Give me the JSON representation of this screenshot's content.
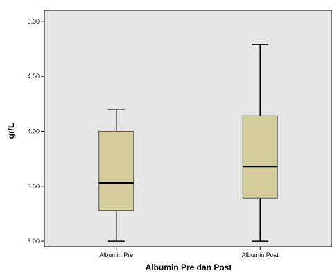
{
  "chart_data": {
    "type": "boxplot",
    "title": "",
    "xlabel": "Albumin Pre dan Post",
    "ylabel": "gr/L",
    "ylim": [
      2.95,
      5.1
    ],
    "y_ticks": [
      "3.00",
      "3.50",
      "4.00",
      "4.50",
      "5.00"
    ],
    "grid": false,
    "categories": [
      "Albumin Pre",
      "Albumin Post"
    ],
    "boxes": [
      {
        "category": "Albumin Pre",
        "min": 3.0,
        "q1": 3.28,
        "median": 3.53,
        "q3": 4.0,
        "max": 4.2
      },
      {
        "category": "Albumin Post",
        "min": 3.0,
        "q1": 3.39,
        "median": 3.68,
        "q3": 4.14,
        "max": 4.79
      }
    ],
    "colors": {
      "plot_background": "#e6e6e6",
      "box_fill": "#d3ce9b",
      "box_stroke": "#000000"
    }
  }
}
